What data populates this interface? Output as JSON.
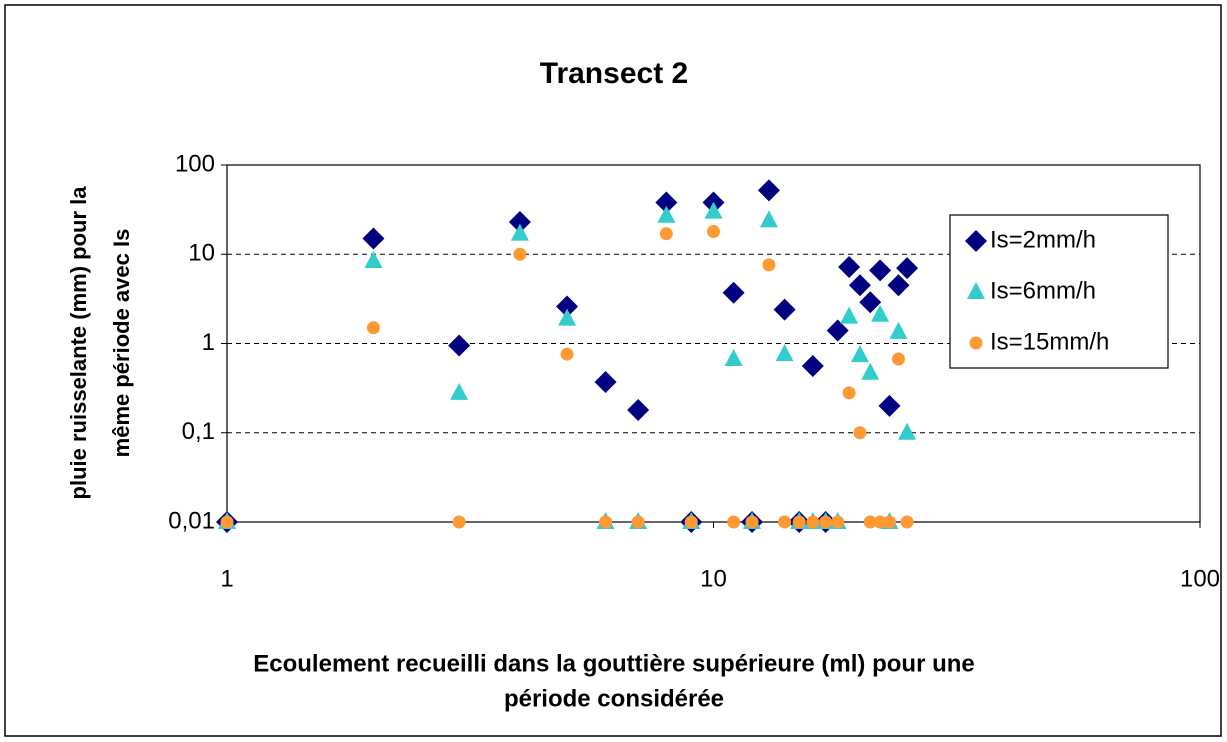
{
  "chart_data": {
    "type": "scatter",
    "title": "Transect 2",
    "x_label": [
      "Ecoulement recueilli dans la gouttière supérieure (ml) pour une",
      "période considérée"
    ],
    "y_label": [
      "pluie ruisselante (mm) pour la",
      "même période avec Is"
    ],
    "x": [
      1,
      2,
      3,
      4,
      5,
      6,
      7,
      8,
      9,
      10,
      11,
      12,
      13,
      14,
      15,
      16,
      17,
      18,
      19,
      20,
      21,
      22,
      23,
      24,
      25
    ],
    "series": [
      {
        "name": "Is=2mm/h",
        "color": "#000080",
        "marker": "diamond",
        "values": [
          0.01,
          15,
          0.95,
          23,
          2.6,
          0.37,
          0.18,
          38,
          0.01,
          38,
          3.7,
          0.01,
          52,
          2.4,
          0.01,
          0.56,
          0.01,
          1.4,
          7.2,
          4.5,
          2.9,
          6.6,
          0.2,
          4.5,
          7
        ]
      },
      {
        "name": "Is=6mm/h",
        "color": "#33cccc",
        "marker": "triangle",
        "values": [
          0.01,
          8.4,
          0.28,
          17,
          1.9,
          0.01,
          0.01,
          27,
          0.01,
          30,
          0.67,
          0.01,
          24,
          0.76,
          0.01,
          0.01,
          0.01,
          0.01,
          2.0,
          0.74,
          0.47,
          2.1,
          0.01,
          1.35,
          0.1
        ]
      },
      {
        "name": "Is=15mm/h",
        "color": "#ff9933",
        "marker": "circle",
        "values": [
          0.01,
          1.5,
          0.01,
          10,
          0.76,
          0.01,
          0.01,
          17,
          0.01,
          18,
          0.01,
          0.01,
          7.6,
          0.01,
          0.01,
          0.01,
          0.01,
          0.01,
          0.28,
          0.1,
          0.01,
          0.01,
          0.01,
          0.67,
          0.01
        ]
      }
    ],
    "xlim": [
      1,
      100
    ],
    "ylim": [
      0.01,
      100
    ],
    "xticks": [
      1,
      10,
      100
    ],
    "yticks": [
      {
        "value": 0.01,
        "label": "0,01"
      },
      {
        "value": 0.1,
        "label": "0,1"
      },
      1,
      10,
      100
    ],
    "xscale": "log",
    "yscale": "log",
    "grid": true,
    "legend": "right"
  }
}
